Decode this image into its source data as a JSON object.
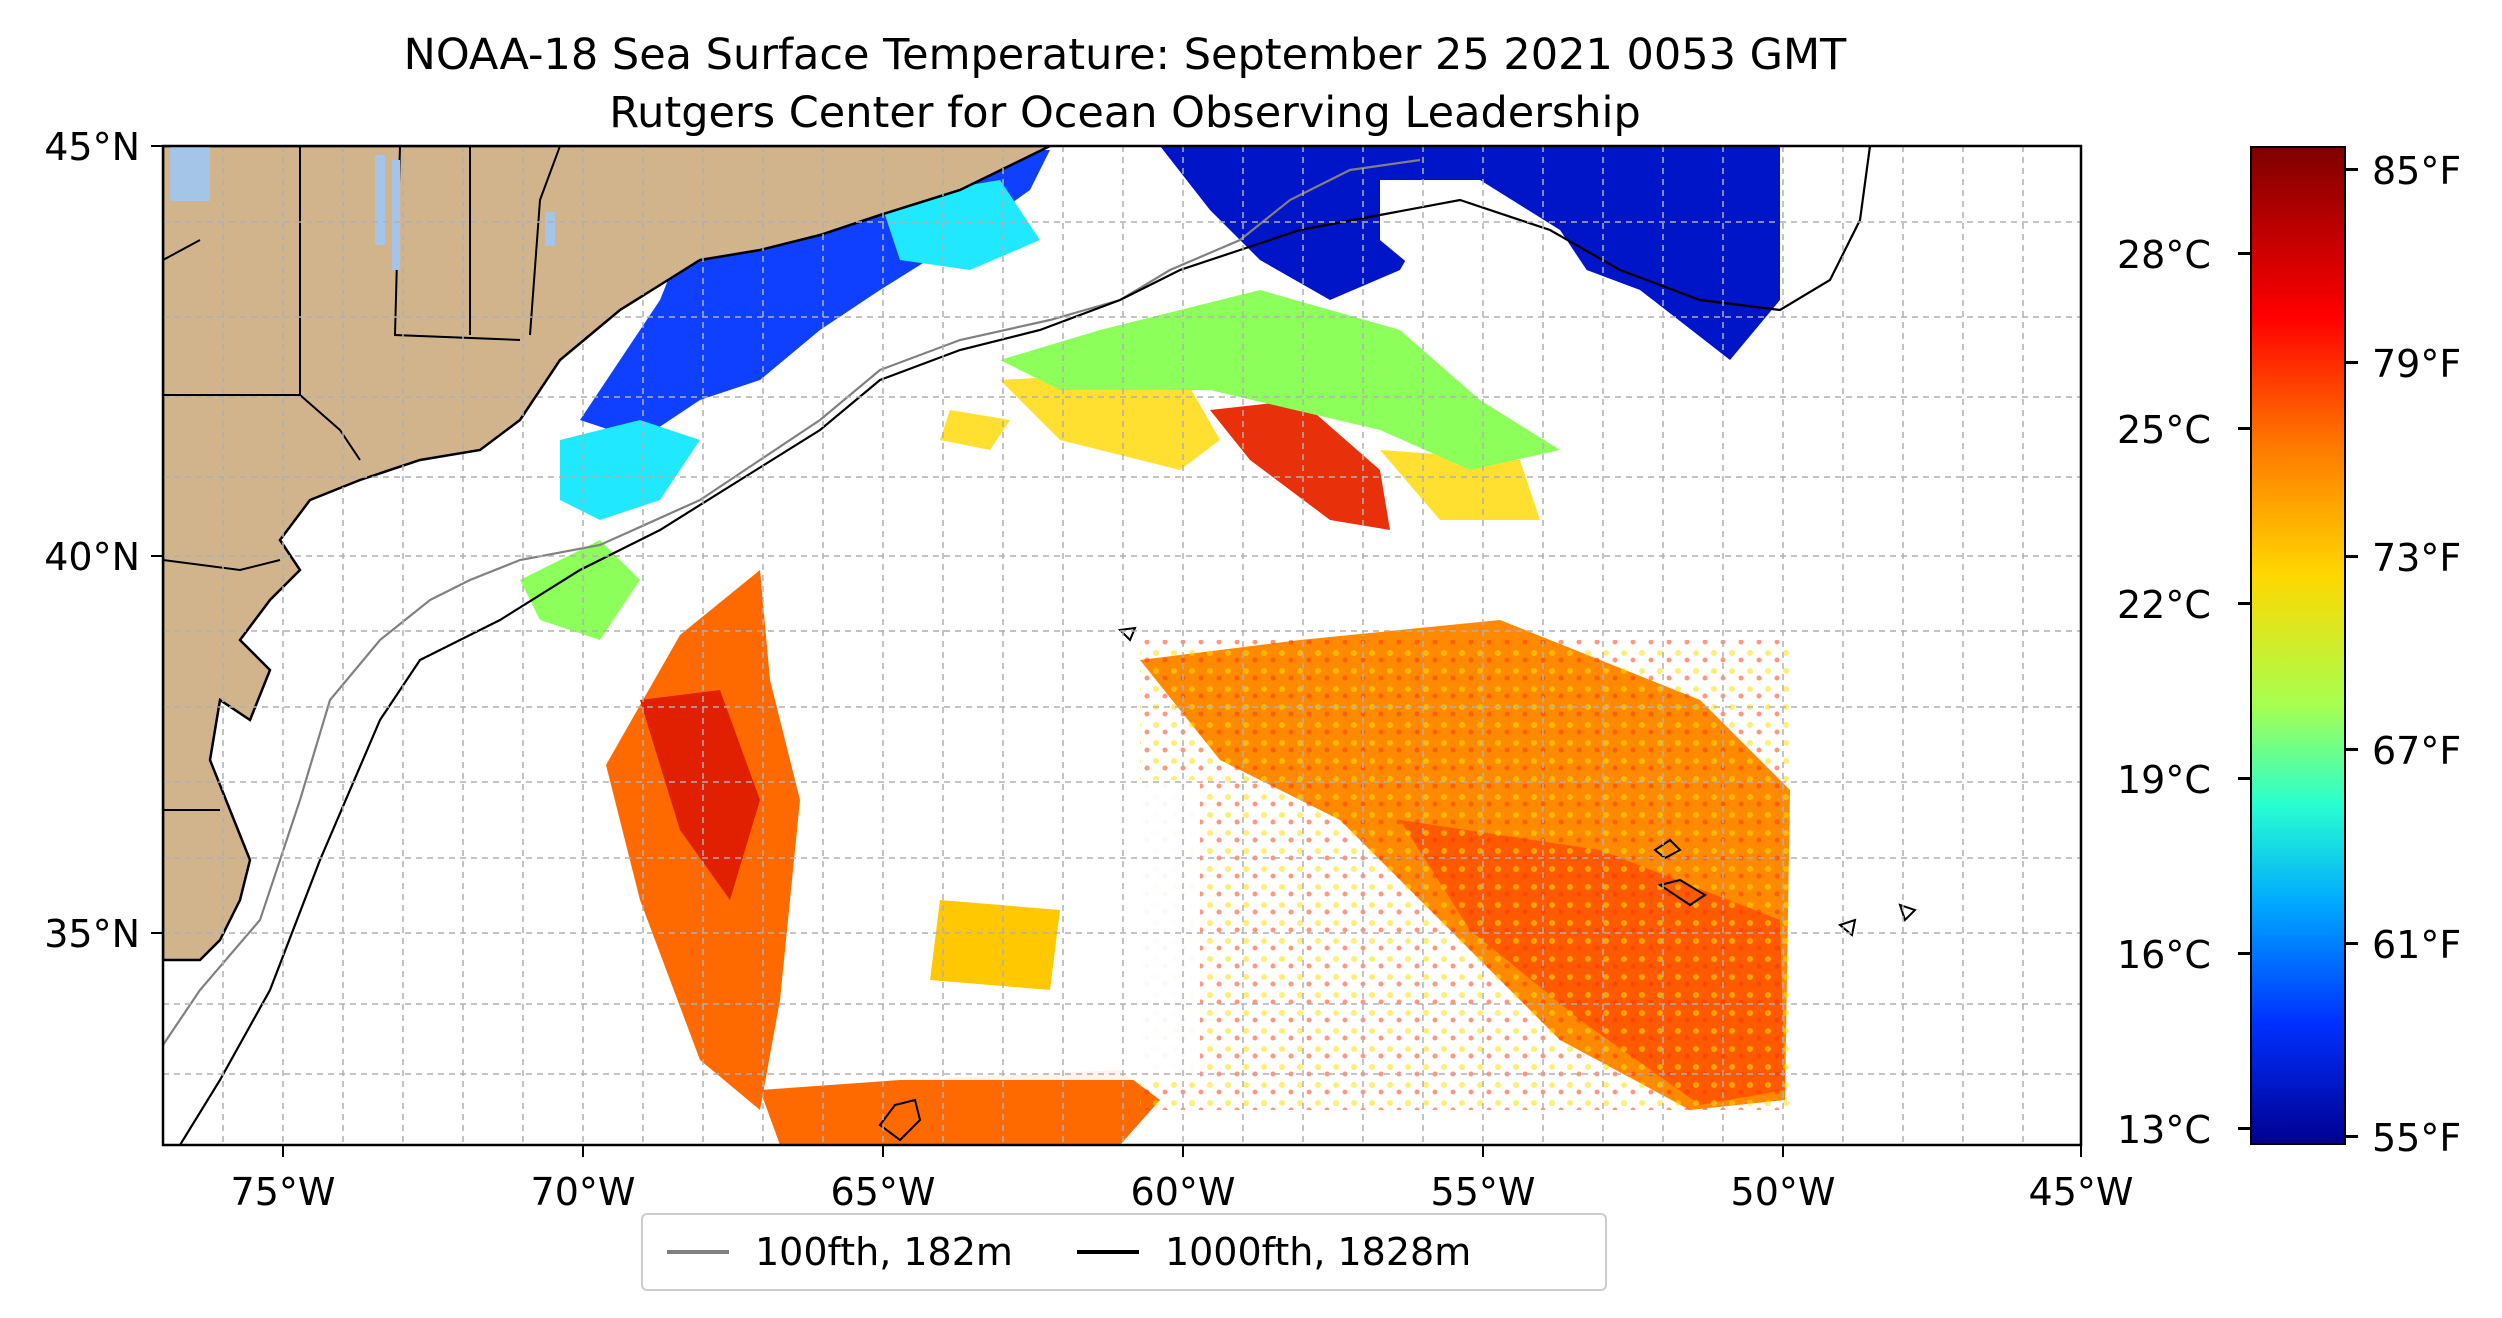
{
  "title": {
    "line1": "NOAA-18 Sea Surface Temperature: September 25 2021 0053 GMT",
    "line2": "Rutgers Center for Ocean Observing Leadership"
  },
  "map": {
    "lon_range": [
      -77,
      -45
    ],
    "lat_range": [
      32.5,
      45
    ],
    "x_ticks": [
      "75°W",
      "70°W",
      "65°W",
      "60°W",
      "55°W",
      "50°W",
      "45°W"
    ],
    "y_ticks": [
      "45°N",
      "40°N",
      "35°N"
    ],
    "gridlines": true,
    "land_color": "#d2b48c",
    "lake_color": "#a4c4e8"
  },
  "legend": {
    "entries": [
      {
        "label": "100fth, 182m",
        "color": "#808080"
      },
      {
        "label": "1000fth, 1828m",
        "color": "#000000"
      }
    ],
    "placement": "bottom-center"
  },
  "colorbar": {
    "colormap": "jet",
    "fahrenheit_labels": [
      "85°F",
      "79°F",
      "73°F",
      "67°F",
      "61°F",
      "55°F"
    ],
    "celsius_labels": [
      "28°C",
      "25°C",
      "22°C",
      "19°C",
      "16°C",
      "13°C"
    ],
    "range_f": [
      54.5,
      86
    ]
  }
}
